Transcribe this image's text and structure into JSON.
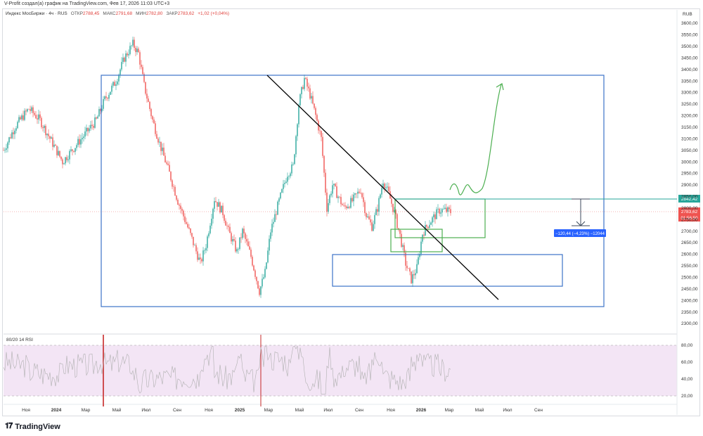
{
  "credit": "V-Profit создал(а) график на TradingView.com, Фев 17, 2026 11:03 UTC+3",
  "header": {
    "symbol": "Индекс МосБиржи · 4ч · RUS",
    "open_label": "ОТКР",
    "open": "2788,45",
    "high_label": "МАКС",
    "high": "2791,68",
    "low_label": "МИН",
    "low": "2782,80",
    "close_label": "ЗАКР",
    "close": "2783,62",
    "change": "+1,02 (+0,04%)"
  },
  "currency": "RUB",
  "price_badges": {
    "target": "2842,42",
    "last": "2783,62",
    "countdown": "01:56:50",
    "measure": "−120,44 (−4,23%) −12044"
  },
  "rsi_label": "80/20 14 RSI",
  "brand": "TradingView",
  "colors": {
    "up": "#26a69a",
    "down": "#ef5350",
    "box_blue": "#3d73c7",
    "box_green": "#4caf50",
    "rsi_fill": "#f3e5f5",
    "measure": "#2962ff"
  },
  "chart_data": [
    {
      "type": "line",
      "title": "Индекс МосБиржи · 4ч",
      "series": [],
      "x_ticks": [
        "Ноя",
        "2024",
        "Мар",
        "Май",
        "Июл",
        "Сен",
        "Ноя",
        "2025",
        "Мар",
        "Май",
        "Июл",
        "Сен",
        "Ноя",
        "2026",
        "Мар",
        "Май",
        "Июл",
        "Сен"
      ],
      "y_ticks": [
        "3600,00",
        "3550,00",
        "3500,00",
        "3450,00",
        "3400,00",
        "3350,00",
        "3300,00",
        "3250,00",
        "3200,00",
        "3150,00",
        "3100,00",
        "3050,00",
        "3000,00",
        "2950,00",
        "2900,00",
        "2850,00",
        "2800,00",
        "2750,00",
        "2700,00",
        "2650,00",
        "2600,00",
        "2550,00",
        "2500,00",
        "2450,00",
        "2400,00",
        "2350,00",
        "2300,00"
      ],
      "ylim": [
        2300,
        3600
      ],
      "price_path_approx": [
        [
          0,
          3050
        ],
        [
          4,
          3150
        ],
        [
          9,
          3230
        ],
        [
          13,
          3180
        ],
        [
          17,
          3090
        ],
        [
          21,
          3000
        ],
        [
          25,
          3060
        ],
        [
          29,
          3120
        ],
        [
          33,
          3180
        ],
        [
          36,
          3270
        ],
        [
          40,
          3350
        ],
        [
          43,
          3450
        ],
        [
          46,
          3510
        ],
        [
          48,
          3470
        ],
        [
          50,
          3330
        ],
        [
          53,
          3180
        ],
        [
          56,
          3060
        ],
        [
          59,
          2950
        ],
        [
          62,
          2830
        ],
        [
          66,
          2700
        ],
        [
          70,
          2560
        ],
        [
          72,
          2640
        ],
        [
          75,
          2840
        ],
        [
          78,
          2780
        ],
        [
          80,
          2700
        ],
        [
          83,
          2610
        ],
        [
          85,
          2700
        ],
        [
          88,
          2590
        ],
        [
          91,
          2440
        ],
        [
          93,
          2520
        ],
        [
          95,
          2700
        ],
        [
          98,
          2830
        ],
        [
          101,
          2950
        ],
        [
          103,
          2980
        ],
        [
          105,
          3250
        ],
        [
          107,
          3360
        ],
        [
          109,
          3290
        ],
        [
          111,
          3200
        ],
        [
          113,
          3100
        ],
        [
          115,
          2800
        ],
        [
          117,
          2900
        ],
        [
          119,
          2850
        ],
        [
          121,
          2800
        ],
        [
          124,
          2830
        ],
        [
          127,
          2880
        ],
        [
          129,
          2770
        ],
        [
          131,
          2720
        ],
        [
          133,
          2800
        ],
        [
          135,
          2920
        ],
        [
          137,
          2860
        ],
        [
          139,
          2780
        ],
        [
          141,
          2680
        ],
        [
          143,
          2560
        ],
        [
          145,
          2490
        ],
        [
          147,
          2540
        ],
        [
          149,
          2690
        ],
        [
          151,
          2730
        ],
        [
          153,
          2760
        ],
        [
          155,
          2790
        ],
        [
          157,
          2790
        ],
        [
          159,
          2783
        ]
      ],
      "rsi": {
        "ylim": [
          20,
          80
        ],
        "y_ticks": [
          "80,00",
          "60,00",
          "40,00",
          "20,00"
        ],
        "levels": [
          80,
          20
        ]
      },
      "annotations": {
        "large_blue_box_price": [
          2380,
          3380
        ],
        "lower_blue_box_price": [
          2465,
          2600
        ],
        "upper_green_box_price": [
          2670,
          2840
        ],
        "small_green_box_price": [
          2610,
          2715
        ],
        "trendline_price": [
          3380,
          2400
        ],
        "target_price": 2842.42,
        "measure_change": "−120,44 (−4,23%)"
      }
    }
  ]
}
